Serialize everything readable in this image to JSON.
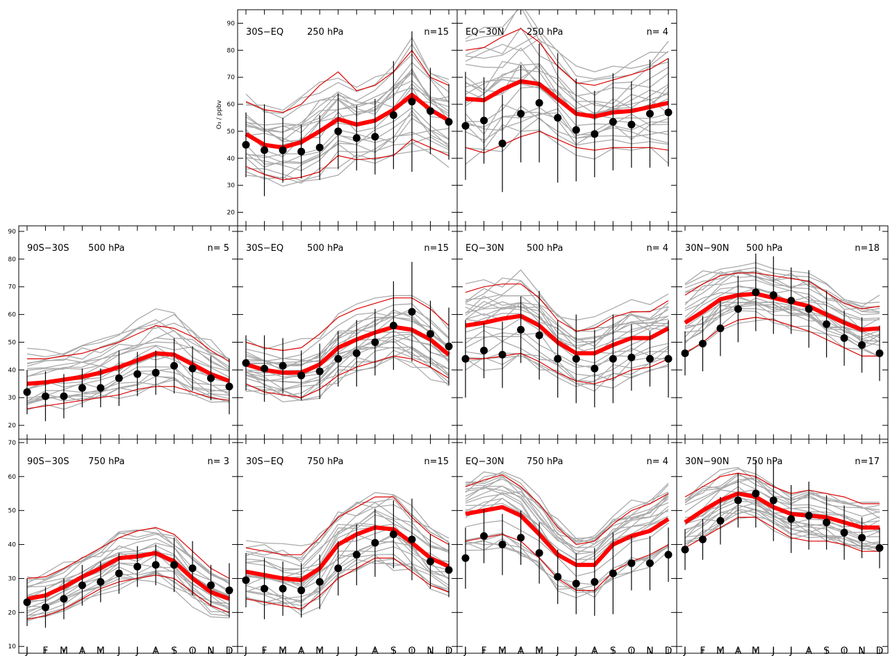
{
  "figure": {
    "ylabel": "O₃ / ppbv",
    "months": [
      "J",
      "F",
      "M",
      "A",
      "M",
      "J",
      "J",
      "A",
      "S",
      "O",
      "N",
      "D"
    ]
  },
  "colors": {
    "model_mean": "#ff0000",
    "model_spread": "#dd0000",
    "ensemble": "#aaaaaa",
    "observations": "#000000"
  },
  "chart_data": [
    {
      "id": "p_30s_eq_250",
      "type": "line",
      "region": "30S−EQ",
      "level": "250 hPa",
      "n": "n=15",
      "ylim": [
        15,
        95
      ],
      "yticks": [
        20,
        30,
        40,
        50,
        60,
        70,
        80,
        90
      ],
      "model_mean": [
        49,
        45,
        44,
        46,
        50,
        54.5,
        52.5,
        54,
        58,
        63.5,
        58,
        54
      ],
      "model_upper": [
        61,
        58,
        57,
        60,
        67,
        72,
        65,
        67,
        72,
        80,
        70,
        67
      ],
      "model_lower": [
        37,
        34,
        32,
        33,
        35,
        41,
        39.5,
        40,
        41,
        47,
        44,
        41
      ],
      "observations": [
        45,
        43,
        43,
        42.5,
        44,
        50,
        47.5,
        48,
        56,
        61,
        57.5,
        53.5
      ],
      "obs_err": [
        12,
        17,
        12,
        10,
        12,
        14,
        12,
        14,
        20,
        26,
        16,
        14
      ]
    },
    {
      "id": "p_eq_30n_250",
      "type": "line",
      "region": "EQ−30N",
      "level": "250 hPa",
      "n": "n= 4",
      "ylim": [
        15,
        95
      ],
      "yticks": [
        20,
        30,
        40,
        50,
        60,
        70,
        80,
        90
      ],
      "model_mean": [
        62,
        61.5,
        65.5,
        68.5,
        67.5,
        62,
        56.5,
        55.5,
        57,
        57.5,
        59,
        60.5
      ],
      "model_upper": [
        80,
        81,
        85,
        88,
        83,
        74,
        68,
        67,
        69,
        71,
        73,
        77
      ],
      "model_lower": [
        44,
        42,
        45,
        48,
        50,
        47,
        44,
        43,
        44,
        44,
        44,
        43
      ],
      "observations": [
        52,
        54,
        45.5,
        56.5,
        60.5,
        55,
        50.5,
        49,
        53.5,
        52.5,
        56.5,
        57
      ],
      "obs_err": [
        20,
        16,
        18,
        18,
        22,
        24,
        19,
        16,
        18,
        16,
        20,
        20
      ]
    },
    {
      "id": "p_90s_30s_500",
      "type": "line",
      "region": "90S−30S",
      "level": "500 hPa",
      "n": "n= 5",
      "ylim": [
        15,
        92
      ],
      "yticks": [
        20,
        30,
        40,
        50,
        60,
        70,
        80,
        90
      ],
      "model_mean": [
        35,
        35.5,
        36.5,
        37.5,
        39,
        41,
        43.5,
        46,
        45.5,
        42,
        38.5,
        36
      ],
      "model_upper": [
        44,
        44,
        45,
        46,
        48,
        50,
        53,
        56,
        55,
        52,
        47,
        43
      ],
      "model_lower": [
        26,
        27,
        28,
        29,
        30,
        31,
        33,
        34,
        34,
        32,
        30,
        29
      ],
      "observations": [
        32,
        30.5,
        30.5,
        33.5,
        33.5,
        37,
        38.5,
        39,
        41.5,
        40.5,
        37,
        34
      ],
      "obs_err": [
        8,
        9,
        8,
        7,
        7,
        10,
        8,
        8,
        10,
        8,
        8,
        10
      ]
    },
    {
      "id": "p_30s_eq_500",
      "type": "line",
      "region": "30S−EQ",
      "level": "500 hPa",
      "n": "n=15",
      "ylim": [
        15,
        92
      ],
      "yticks": [
        20,
        30,
        40,
        50,
        60,
        70,
        80,
        90
      ],
      "model_mean": [
        42,
        40,
        39,
        39,
        42,
        48,
        51,
        53.5,
        55.5,
        54.5,
        51,
        45.5
      ],
      "model_upper": [
        50,
        48,
        47,
        48,
        53,
        59,
        62,
        64,
        66,
        66,
        62,
        56
      ],
      "model_lower": [
        35,
        32,
        31,
        30,
        33,
        38,
        41,
        43,
        45,
        44,
        41,
        37
      ],
      "observations": [
        42.5,
        40.5,
        41.5,
        38,
        39.5,
        44,
        46,
        50,
        56,
        61,
        53,
        48.5
      ],
      "obs_err": [
        10,
        12,
        10,
        9,
        10,
        10,
        12,
        12,
        16,
        18,
        12,
        14
      ]
    },
    {
      "id": "p_eq_30n_500",
      "type": "line",
      "region": "EQ−30N",
      "level": "500 hPa",
      "n": "n= 4",
      "ylim": [
        15,
        92
      ],
      "yticks": [
        20,
        30,
        40,
        50,
        60,
        70,
        80,
        90
      ],
      "model_mean": [
        56,
        57,
        58.5,
        59.5,
        56,
        50,
        46,
        46,
        49,
        51.5,
        51.5,
        55
      ],
      "model_upper": [
        68,
        70,
        71,
        71,
        66,
        58,
        54,
        55,
        59,
        61,
        61,
        65
      ],
      "model_lower": [
        44,
        44,
        45,
        46,
        43,
        39,
        36,
        35,
        37,
        40,
        41,
        44
      ],
      "observations": [
        44,
        47,
        45.5,
        54.5,
        52.5,
        44,
        44,
        40.5,
        44,
        44.5,
        44,
        44
      ],
      "obs_err": [
        14,
        10,
        12,
        12,
        16,
        14,
        16,
        14,
        16,
        12,
        10,
        14
      ]
    },
    {
      "id": "p_30n_90n_500",
      "type": "line",
      "region": "30N−90N",
      "level": "500 hPa",
      "n": "n=18",
      "ylim": [
        15,
        92
      ],
      "yticks": [
        20,
        30,
        40,
        50,
        60,
        70,
        80,
        90
      ],
      "model_mean": [
        57,
        61,
        65.5,
        67,
        67.5,
        66,
        64.5,
        63,
        60,
        57,
        54.5,
        55
      ],
      "model_upper": [
        67,
        71,
        74,
        75,
        75,
        74,
        73,
        72,
        68,
        64,
        62,
        63
      ],
      "model_lower": [
        46,
        50,
        55,
        58,
        59,
        58,
        56,
        54,
        51,
        48,
        45,
        45
      ],
      "observations": [
        46,
        49.5,
        55,
        62,
        68,
        67,
        65,
        62,
        56.5,
        51.5,
        49,
        46
      ],
      "obs_err": [
        8,
        10,
        10,
        12,
        14,
        14,
        12,
        14,
        12,
        10,
        10,
        10
      ]
    },
    {
      "id": "p_90s_30s_750",
      "type": "line",
      "region": "90S−30S",
      "level": "750 hPa",
      "n": "n= 3",
      "ylim": [
        8,
        71
      ],
      "yticks": [
        10,
        20,
        30,
        40,
        50,
        60,
        70
      ],
      "model_mean": [
        24,
        25,
        27.5,
        30.5,
        33,
        36,
        36.5,
        37.5,
        35,
        30,
        26,
        24
      ],
      "model_upper": [
        30,
        30.5,
        33,
        36,
        39,
        42,
        44,
        45,
        43,
        38,
        33,
        30
      ],
      "model_lower": [
        18,
        19,
        21,
        24,
        27,
        29,
        30,
        31,
        30,
        26,
        22,
        20
      ],
      "observations": [
        23,
        21.5,
        24,
        28,
        29,
        31.5,
        33.5,
        34,
        34,
        33,
        28,
        26.5
      ],
      "obs_err": [
        7,
        6,
        6,
        6,
        6,
        6,
        6,
        6,
        8,
        8,
        6,
        8
      ]
    },
    {
      "id": "p_30s_eq_750",
      "type": "line",
      "region": "30S−EQ",
      "level": "750 hPa",
      "n": "n=15",
      "ylim": [
        8,
        71
      ],
      "yticks": [
        10,
        20,
        30,
        40,
        50,
        60,
        70
      ],
      "model_mean": [
        32,
        31,
        30,
        29.5,
        33,
        40,
        43,
        45,
        44.5,
        40.5,
        36,
        33.5
      ],
      "model_upper": [
        39,
        38,
        37,
        37,
        42,
        48,
        51,
        54,
        54,
        48,
        43,
        40
      ],
      "model_lower": [
        24,
        23,
        22,
        21,
        25,
        30,
        33,
        36,
        36,
        32,
        28,
        26
      ],
      "observations": [
        29.5,
        27,
        27,
        26.5,
        29,
        33,
        37,
        40.5,
        43,
        41.5,
        35,
        32.5
      ],
      "obs_err": [
        8,
        9,
        8,
        8,
        8,
        8,
        9,
        10,
        10,
        12,
        8,
        8
      ]
    },
    {
      "id": "p_eq_30n_750",
      "type": "line",
      "region": "EQ−30N",
      "level": "750 hPa",
      "n": "n= 4",
      "ylim": [
        8,
        71
      ],
      "yticks": [
        10,
        20,
        30,
        40,
        50,
        60,
        70
      ],
      "model_mean": [
        49,
        50,
        51,
        48.5,
        43,
        37,
        34,
        34,
        40,
        42.5,
        44,
        47.5
      ],
      "model_upper": [
        57,
        59,
        60.5,
        57,
        52,
        45,
        40,
        41,
        46,
        50,
        52,
        55
      ],
      "model_lower": [
        41,
        42,
        43,
        41,
        36,
        30,
        26.5,
        26.5,
        32,
        35,
        37,
        40
      ],
      "observations": [
        36,
        42.5,
        40,
        42,
        37.5,
        30.5,
        28.5,
        29,
        31.5,
        34.5,
        34.5,
        37
      ],
      "obs_err": [
        9,
        8,
        9,
        8,
        9,
        8,
        9,
        10,
        12,
        8,
        8,
        8
      ]
    },
    {
      "id": "p_30n_90n_750",
      "type": "line",
      "region": "30N−90N",
      "level": "750 hPa",
      "n": "n=17",
      "ylim": [
        8,
        71
      ],
      "yticks": [
        10,
        20,
        30,
        40,
        50,
        60,
        70
      ],
      "model_mean": [
        46.5,
        50,
        53,
        55,
        54,
        51,
        49,
        48.5,
        48,
        46.5,
        45,
        45
      ],
      "model_upper": [
        54,
        57,
        60,
        61,
        60,
        57,
        55,
        56,
        55,
        54,
        52,
        52
      ],
      "model_lower": [
        39,
        42,
        45,
        48,
        48,
        45,
        42,
        41,
        41,
        40,
        38,
        38
      ],
      "observations": [
        38.5,
        41.5,
        47,
        53,
        55,
        53,
        47.5,
        48.5,
        46.5,
        43.5,
        42,
        39
      ],
      "obs_err": [
        6,
        6,
        7,
        8,
        10,
        12,
        10,
        10,
        8,
        8,
        6,
        6
      ]
    }
  ]
}
